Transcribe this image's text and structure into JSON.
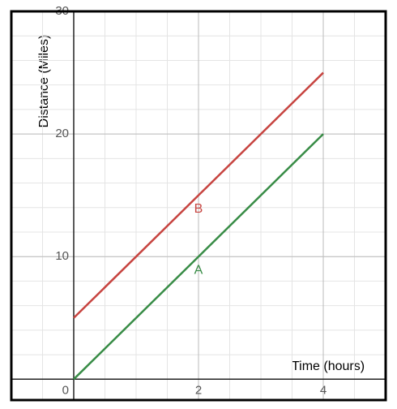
{
  "chart_data": {
    "type": "line",
    "x_label": "Time (hours)",
    "y_label": "Distance (Miles)",
    "x": [
      0,
      2,
      4
    ],
    "series": [
      {
        "name": "A",
        "color": "#388c46",
        "values": [
          0,
          10,
          20
        ]
      },
      {
        "name": "B",
        "color": "#c74440",
        "values": [
          5,
          15,
          25
        ]
      }
    ],
    "xlim": [
      -1,
      5
    ],
    "ylim": [
      -1.7,
      30
    ],
    "xticks": [
      2,
      4
    ],
    "yticks": [
      0,
      10,
      20,
      30
    ],
    "minor_xticks": [
      -1,
      -0.5,
      0,
      0.5,
      1,
      1.5,
      2,
      2.5,
      3,
      3.5,
      4,
      4.5,
      5
    ],
    "minor_yticks": [
      0,
      2,
      4,
      6,
      8,
      10,
      12,
      14,
      16,
      18,
      20,
      22,
      24,
      26,
      28,
      30
    ],
    "grid": true
  }
}
